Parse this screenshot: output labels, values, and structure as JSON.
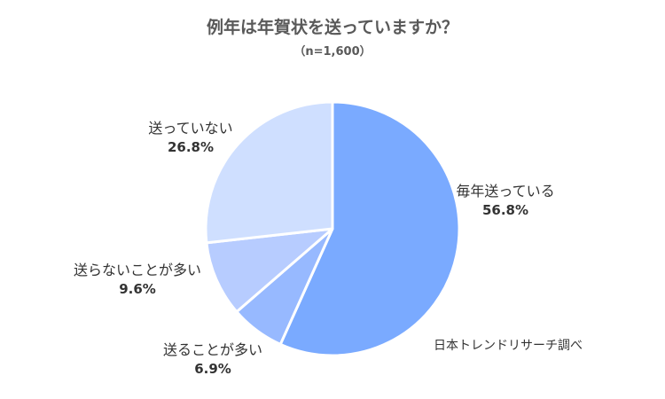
{
  "chart_data": {
    "type": "pie",
    "title": "例年は年賀状を送っていますか？",
    "subtitle": "（n=1,600）",
    "slices": [
      {
        "label": "毎年送っている",
        "value": 56.8,
        "value_label": "56.8%",
        "color": "#7aaaff"
      },
      {
        "label": "送ることが多い",
        "value": 6.9,
        "value_label": "6.9%",
        "color": "#97b9ff"
      },
      {
        "label": "送らないことが多い",
        "value": 9.6,
        "value_label": "9.6%",
        "color": "#b7ccff"
      },
      {
        "label": "送っていない",
        "value": 26.8,
        "value_label": "26.8%",
        "color": "#cfdfff"
      }
    ],
    "start": "12 o'clock",
    "direction": "clockwise",
    "source": "日本トレンドリサーチ調べ"
  }
}
